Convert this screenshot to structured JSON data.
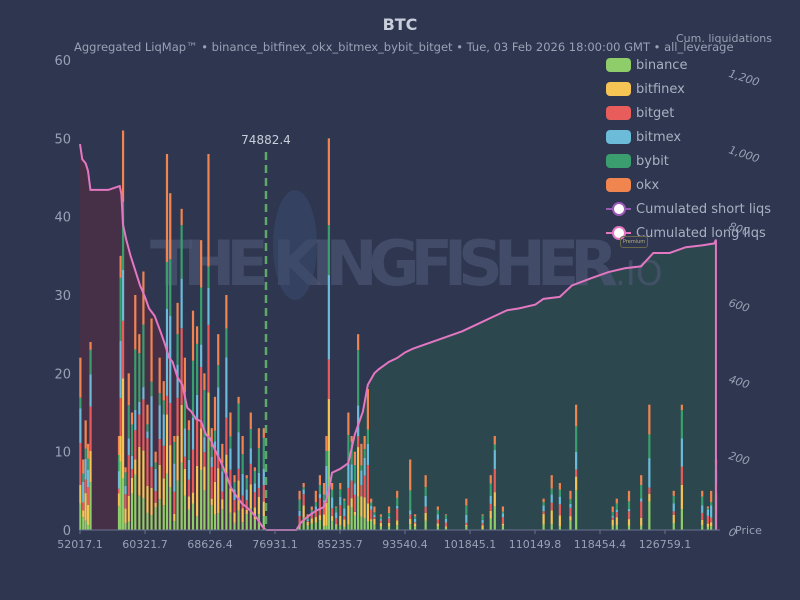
{
  "header": {
    "title": "BTC",
    "subtitle": "Aggregated LiqMap™  •  binance_bitfinex_okx_bitmex_bybit_bitget  •  Tue, 03 Feb 2026 18:00:00 GMT  •  all_leverage",
    "right_axis_label": "Cum. liquidations"
  },
  "watermark": {
    "text": "THE KINGFISHER",
    "suffix": ".IO",
    "badge": "Premium"
  },
  "current_price": {
    "label": "74882.4",
    "value": 74882.4
  },
  "legend": [
    {
      "label": "binance",
      "color": "#8fcc6a",
      "type": "bar"
    },
    {
      "label": "bitfinex",
      "color": "#f5c454",
      "type": "bar"
    },
    {
      "label": "bitget",
      "color": "#e85c5c",
      "type": "bar"
    },
    {
      "label": "bitmex",
      "color": "#6bbbd9",
      "type": "bar"
    },
    {
      "label": "bybit",
      "color": "#3a9e6e",
      "type": "bar"
    },
    {
      "label": "okx",
      "color": "#f08550",
      "type": "bar"
    },
    {
      "label": "Cumulated short liqs",
      "color": "#9b59b6",
      "type": "line"
    },
    {
      "label": "Cumulated long liqs",
      "color": "#e377c2",
      "type": "line"
    }
  ],
  "chart_data": {
    "type": "bar",
    "title": "BTC",
    "subtitle": "Aggregated LiqMap™ • binance_bitfinex_okx_bitmex_bybit_bitget • Tue, 03 Feb 2026 18:00:00 GMT • all_leverage",
    "xlabel": "Price",
    "ylabel": "",
    "y2label": "Cum. liquidations",
    "xlim": [
      52017.1,
      130500
    ],
    "ylim": [
      0,
      60
    ],
    "y2lim": [
      0,
      1230
    ],
    "x_ticks": [
      "52017.1",
      "60321.7",
      "68626.4",
      "76931.1",
      "85235.7",
      "93540.4",
      "101845.1",
      "110149.8",
      "118454.4",
      "126759.1"
    ],
    "y_ticks": [
      0,
      10,
      20,
      30,
      40,
      50,
      60
    ],
    "y2_ticks": [
      0,
      200,
      400,
      600,
      800,
      1000,
      1200
    ],
    "current_price_line": 74882.4,
    "stacked_series": [
      "binance",
      "bitfinex",
      "bitget",
      "bitmex",
      "bybit",
      "okx"
    ],
    "bars": [
      {
        "x": 52050,
        "total": 22
      },
      {
        "x": 52400,
        "total": 9
      },
      {
        "x": 52700,
        "total": 14
      },
      {
        "x": 53000,
        "total": 11
      },
      {
        "x": 53300,
        "total": 24
      },
      {
        "x": 56800,
        "total": 12
      },
      {
        "x": 57000,
        "total": 35
      },
      {
        "x": 57300,
        "total": 51
      },
      {
        "x": 57600,
        "total": 8
      },
      {
        "x": 58000,
        "total": 20
      },
      {
        "x": 58400,
        "total": 15
      },
      {
        "x": 58800,
        "total": 30
      },
      {
        "x": 59300,
        "total": 25
      },
      {
        "x": 59800,
        "total": 33
      },
      {
        "x": 60300,
        "total": 16
      },
      {
        "x": 60800,
        "total": 27
      },
      {
        "x": 61300,
        "total": 10
      },
      {
        "x": 61800,
        "total": 22
      },
      {
        "x": 62300,
        "total": 19
      },
      {
        "x": 62700,
        "total": 48
      },
      {
        "x": 63100,
        "total": 43
      },
      {
        "x": 63600,
        "total": 12
      },
      {
        "x": 64000,
        "total": 29
      },
      {
        "x": 64500,
        "total": 41
      },
      {
        "x": 64900,
        "total": 22
      },
      {
        "x": 65400,
        "total": 14
      },
      {
        "x": 65900,
        "total": 28
      },
      {
        "x": 66400,
        "total": 26
      },
      {
        "x": 66900,
        "total": 37
      },
      {
        "x": 67300,
        "total": 20
      },
      {
        "x": 67800,
        "total": 48
      },
      {
        "x": 68200,
        "total": 13
      },
      {
        "x": 68600,
        "total": 17
      },
      {
        "x": 69000,
        "total": 25
      },
      {
        "x": 69500,
        "total": 11
      },
      {
        "x": 70000,
        "total": 30
      },
      {
        "x": 70500,
        "total": 15
      },
      {
        "x": 71000,
        "total": 7
      },
      {
        "x": 71500,
        "total": 17
      },
      {
        "x": 72000,
        "total": 12
      },
      {
        "x": 72500,
        "total": 7
      },
      {
        "x": 73000,
        "total": 15
      },
      {
        "x": 73500,
        "total": 8
      },
      {
        "x": 74000,
        "total": 13
      },
      {
        "x": 74600,
        "total": 13
      },
      {
        "x": 79000,
        "total": 5
      },
      {
        "x": 79500,
        "total": 6
      },
      {
        "x": 80000,
        "total": 2
      },
      {
        "x": 80500,
        "total": 3
      },
      {
        "x": 81000,
        "total": 5
      },
      {
        "x": 81500,
        "total": 7
      },
      {
        "x": 82000,
        "total": 6
      },
      {
        "x": 82300,
        "total": 12
      },
      {
        "x": 82600,
        "total": 50
      },
      {
        "x": 83000,
        "total": 6
      },
      {
        "x": 83500,
        "total": 3
      },
      {
        "x": 84000,
        "total": 6
      },
      {
        "x": 84500,
        "total": 4
      },
      {
        "x": 85000,
        "total": 15
      },
      {
        "x": 85400,
        "total": 12
      },
      {
        "x": 85800,
        "total": 10
      },
      {
        "x": 86200,
        "total": 25
      },
      {
        "x": 86600,
        "total": 11
      },
      {
        "x": 87000,
        "total": 12
      },
      {
        "x": 87400,
        "total": 18
      },
      {
        "x": 87800,
        "total": 4
      },
      {
        "x": 88200,
        "total": 3
      },
      {
        "x": 89000,
        "total": 2
      },
      {
        "x": 90000,
        "total": 3
      },
      {
        "x": 91000,
        "total": 5
      },
      {
        "x": 92600,
        "total": 9
      },
      {
        "x": 93200,
        "total": 2
      },
      {
        "x": 94500,
        "total": 7
      },
      {
        "x": 96000,
        "total": 3
      },
      {
        "x": 97000,
        "total": 2
      },
      {
        "x": 99500,
        "total": 4
      },
      {
        "x": 101500,
        "total": 2
      },
      {
        "x": 102500,
        "total": 7
      },
      {
        "x": 103000,
        "total": 12
      },
      {
        "x": 104000,
        "total": 3
      },
      {
        "x": 109000,
        "total": 4
      },
      {
        "x": 110000,
        "total": 7
      },
      {
        "x": 111000,
        "total": 6
      },
      {
        "x": 112300,
        "total": 5
      },
      {
        "x": 113000,
        "total": 16
      },
      {
        "x": 117500,
        "total": 3
      },
      {
        "x": 118000,
        "total": 4
      },
      {
        "x": 119500,
        "total": 5
      },
      {
        "x": 121000,
        "total": 7
      },
      {
        "x": 122000,
        "total": 16
      },
      {
        "x": 125000,
        "total": 5
      },
      {
        "x": 126000,
        "total": 16
      },
      {
        "x": 128500,
        "total": 5
      },
      {
        "x": 129200,
        "total": 3
      },
      {
        "x": 129600,
        "total": 5
      },
      {
        "x": 130200,
        "total": 9
      }
    ],
    "cumulated_long_liqs": {
      "x": [
        52017,
        52300,
        52700,
        53000,
        53300,
        55500,
        56900,
        57100,
        57300,
        57700,
        58200,
        58800,
        59400,
        60000,
        60500,
        61200,
        61900,
        62400,
        63000,
        63400,
        64000,
        64600,
        65200,
        65700,
        66300,
        66900,
        67500,
        68000,
        68600,
        69300,
        69900,
        70600,
        71200,
        71900,
        72500,
        73200,
        73800,
        74400,
        74882
      ],
      "y": [
        1010,
        970,
        960,
        940,
        890,
        890,
        900,
        880,
        800,
        760,
        720,
        680,
        640,
        610,
        580,
        560,
        520,
        490,
        450,
        440,
        400,
        380,
        320,
        310,
        290,
        285,
        250,
        240,
        210,
        180,
        150,
        110,
        90,
        70,
        60,
        45,
        30,
        10,
        0
      ]
    },
    "cumulated_short_liqs": {
      "x": [
        74882,
        78600,
        79200,
        80000,
        81000,
        82000,
        82600,
        83000,
        84000,
        85000,
        85800,
        86300,
        86800,
        87400,
        88200,
        88700,
        90000,
        91000,
        92000,
        93000,
        95000,
        97000,
        99000,
        101000,
        103000,
        104500,
        106000,
        108000,
        109000,
        111000,
        112500,
        115000,
        117000,
        119000,
        121000,
        122500,
        124500,
        126500,
        128500,
        130000,
        130200
      ],
      "y": [
        0,
        0,
        20,
        35,
        50,
        60,
        100,
        150,
        160,
        175,
        250,
        280,
        310,
        380,
        410,
        420,
        440,
        450,
        465,
        475,
        490,
        505,
        520,
        540,
        560,
        575,
        580,
        590,
        605,
        610,
        640,
        660,
        675,
        685,
        690,
        725,
        725,
        740,
        745,
        750,
        760
      ]
    }
  }
}
